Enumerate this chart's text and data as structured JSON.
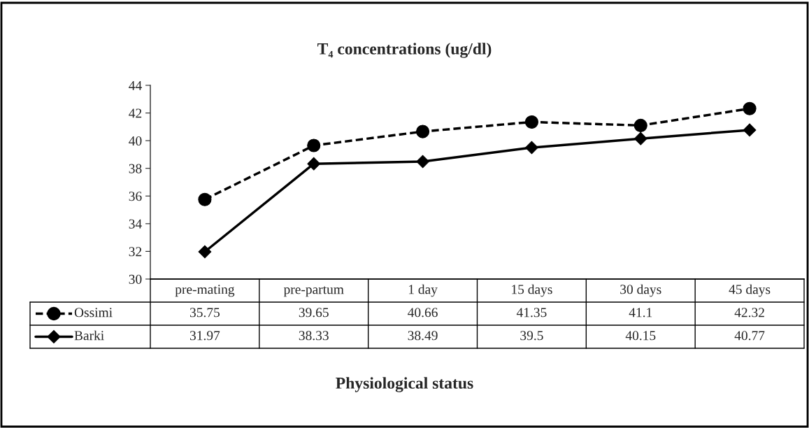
{
  "chart_data": {
    "type": "line",
    "title": "T₄ concentrations (ug/dl)",
    "xlabel": "Physiological status",
    "categories": [
      "pre-mating",
      "pre-partum",
      "1 day",
      "15 days",
      "30 days",
      "45 days"
    ],
    "series": [
      {
        "name": "Ossimi",
        "color": "#000000",
        "marker": "circle",
        "line_style": "dashed",
        "values": [
          35.75,
          39.65,
          40.66,
          41.35,
          41.1,
          42.32
        ]
      },
      {
        "name": "Barki",
        "color": "#000000",
        "marker": "diamond",
        "line_style": "solid",
        "values": [
          31.97,
          38.33,
          38.49,
          39.5,
          40.15,
          40.77
        ]
      }
    ],
    "ylim": [
      30,
      44
    ],
    "yticks": [
      30,
      32,
      34,
      36,
      38,
      40,
      42,
      44
    ],
    "grid": false,
    "data_labels": true,
    "legend": "bottom left"
  }
}
